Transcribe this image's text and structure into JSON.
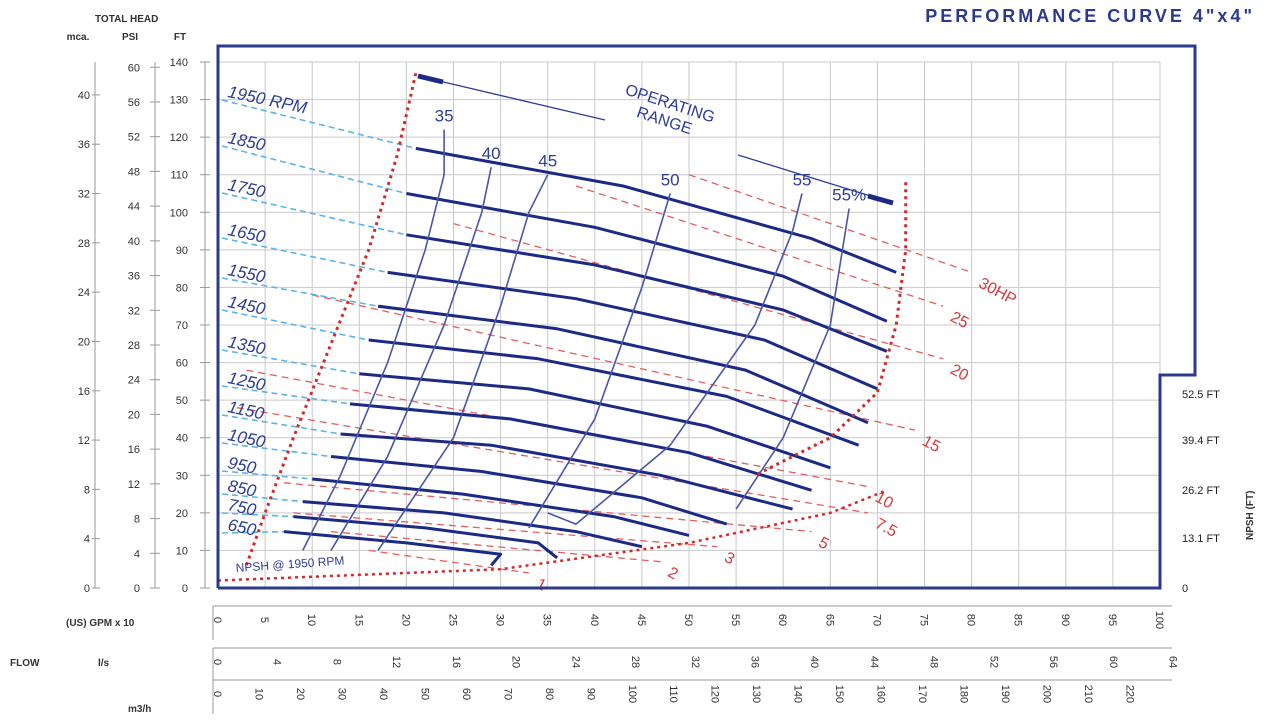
{
  "title": "PERFORMANCE CURVE  4\"x4\"",
  "header": {
    "total_head": "TOTAL HEAD",
    "mca": "mca.",
    "psi": "PSI",
    "ft": "FT"
  },
  "axis_labels": {
    "gpm": "(US) GPM  x 10",
    "flow": "FLOW",
    "ls": "l/s",
    "m3h": "m3/h",
    "npsh_ft": "NPSH (FT)"
  },
  "annotations": {
    "operating_range": [
      "OPERATING",
      "RANGE"
    ],
    "npsh_curve_label": "NPSH @ 1950 RPM"
  },
  "chart_data": {
    "type": "line",
    "xlabel": "(US) GPM x 10",
    "ylabel": "TOTAL HEAD",
    "xlim": [
      0,
      100
    ],
    "ylim": [
      0,
      140
    ],
    "grid": true,
    "x_ticks_gpm10": [
      "0",
      "5",
      "10",
      "15",
      "20",
      "25",
      "30",
      "35",
      "40",
      "45",
      "50",
      "55",
      "60",
      "65",
      "70",
      "75",
      "80",
      "85",
      "90",
      "95",
      "100"
    ],
    "x_ticks_ls": [
      "0",
      "4",
      "8",
      "12",
      "16",
      "20",
      "24",
      "28",
      "32",
      "36",
      "40",
      "44",
      "48",
      "52",
      "56",
      "60",
      "64"
    ],
    "x_ticks_m3h": [
      "0",
      "10",
      "20",
      "30",
      "40",
      "50",
      "60",
      "70",
      "80",
      "90",
      "100",
      "110",
      "120",
      "130",
      "140",
      "150",
      "160",
      "170",
      "180",
      "190",
      "200",
      "210",
      "220"
    ],
    "y_ticks_ft": [
      "0",
      "10",
      "20",
      "30",
      "40",
      "50",
      "60",
      "70",
      "80",
      "90",
      "100",
      "110",
      "120",
      "130",
      "140"
    ],
    "y_ticks_psi": [
      "0",
      "4",
      "8",
      "12",
      "16",
      "20",
      "24",
      "28",
      "32",
      "36",
      "40",
      "44",
      "48",
      "52",
      "56",
      "60"
    ],
    "y_ticks_mca": [
      "0",
      "4",
      "8",
      "12",
      "16",
      "20",
      "24",
      "28",
      "32",
      "36",
      "40"
    ],
    "npsh_ticks": [
      "0",
      "13.1 FT",
      "26.2 FT",
      "39.4 FT",
      "52.5 FT"
    ],
    "series": [
      {
        "name": "1950 RPM",
        "label": "1950 RPM",
        "x": [
          21,
          43,
          63,
          72
        ],
        "y": [
          117,
          107,
          93,
          84
        ]
      },
      {
        "name": "1850",
        "label": "1850",
        "x": [
          20,
          40,
          60,
          71
        ],
        "y": [
          105,
          96,
          83,
          71
        ]
      },
      {
        "name": "1750",
        "label": "1750",
        "x": [
          20,
          40,
          60,
          71
        ],
        "y": [
          94,
          86,
          74,
          63
        ]
      },
      {
        "name": "1650",
        "label": "1650",
        "x": [
          18,
          38,
          58,
          70
        ],
        "y": [
          84,
          77,
          66,
          53
        ]
      },
      {
        "name": "1550",
        "label": "1550",
        "x": [
          17,
          36,
          56,
          69
        ],
        "y": [
          75,
          69,
          58,
          44
        ]
      },
      {
        "name": "1450",
        "label": "1450",
        "x": [
          16,
          34,
          54,
          68
        ],
        "y": [
          66,
          61,
          51,
          38
        ]
      },
      {
        "name": "1350",
        "label": "1350",
        "x": [
          15,
          33,
          52,
          65
        ],
        "y": [
          57,
          53,
          43,
          32
        ]
      },
      {
        "name": "1250",
        "label": "1250",
        "x": [
          14,
          31,
          50,
          63
        ],
        "y": [
          49,
          45,
          36,
          26
        ]
      },
      {
        "name": "1150",
        "label": "1150",
        "x": [
          13,
          29,
          47,
          61
        ],
        "y": [
          41,
          38,
          30,
          21
        ]
      },
      {
        "name": "1050",
        "label": "1050",
        "x": [
          12,
          28,
          45,
          54
        ],
        "y": [
          35,
          31,
          24,
          17
        ]
      },
      {
        "name": "950",
        "label": "950",
        "x": [
          10,
          26,
          42,
          50
        ],
        "y": [
          29,
          25,
          19,
          14
        ]
      },
      {
        "name": "850",
        "label": "850",
        "x": [
          9,
          24,
          38,
          45
        ],
        "y": [
          23,
          20,
          15,
          11
        ]
      },
      {
        "name": "750",
        "label": "750",
        "x": [
          8,
          22,
          34,
          36
        ],
        "y": [
          19,
          16,
          12,
          8
        ]
      },
      {
        "name": "650",
        "label": "650",
        "x": [
          7,
          20,
          30,
          29
        ],
        "y": [
          15,
          12,
          9,
          6
        ]
      }
    ],
    "efficiency_curves": [
      {
        "label": "35",
        "x": [
          9,
          13,
          18,
          22,
          24,
          24
        ],
        "y": [
          10,
          30,
          60,
          90,
          110,
          122
        ]
      },
      {
        "label": "40",
        "x": [
          12,
          18,
          24,
          28,
          29
        ],
        "y": [
          10,
          35,
          70,
          100,
          112
        ]
      },
      {
        "label": "45",
        "x": [
          17,
          25,
          30,
          33,
          35
        ],
        "y": [
          10,
          40,
          75,
          100,
          110
        ]
      },
      {
        "label": "50",
        "x": [
          33,
          40,
          45,
          48
        ],
        "y": [
          16,
          45,
          80,
          105
        ]
      },
      {
        "label": "55",
        "x": [
          35,
          38,
          48,
          57,
          61,
          62
        ],
        "y": [
          20,
          17,
          38,
          70,
          95,
          105
        ]
      },
      {
        "label": "55%",
        "x": [
          55,
          60,
          65,
          67
        ],
        "y": [
          21,
          40,
          70,
          101
        ]
      }
    ],
    "horsepower_lines": [
      {
        "label": "30HP",
        "x": [
          50,
          80
        ],
        "y": [
          110,
          84
        ]
      },
      {
        "label": "25",
        "x": [
          38,
          77
        ],
        "y": [
          107,
          75
        ]
      },
      {
        "label": "20",
        "x": [
          25,
          77
        ],
        "y": [
          97,
          61
        ]
      },
      {
        "label": "15",
        "x": [
          10,
          74
        ],
        "y": [
          78,
          42
        ]
      },
      {
        "label": "10",
        "x": [
          3,
          69
        ],
        "y": [
          58,
          27
        ]
      },
      {
        "label": "7.5",
        "x": [
          2,
          69
        ],
        "y": [
          48,
          20
        ]
      },
      {
        "label": "5",
        "x": [
          7,
          63
        ],
        "y": [
          28,
          15
        ]
      },
      {
        "label": "3",
        "x": [
          8,
          53
        ],
        "y": [
          20,
          11
        ]
      },
      {
        "label": "2",
        "x": [
          12,
          47
        ],
        "y": [
          15,
          7
        ]
      },
      {
        "label": "1",
        "x": [
          16,
          33
        ],
        "y": [
          10,
          4
        ]
      }
    ],
    "npsh_curve": {
      "label": "NPSH @ 1950 RPM",
      "x": [
        0,
        30,
        50,
        65,
        71
      ],
      "y": [
        2,
        5,
        12,
        20,
        26
      ]
    },
    "operating_range_left": {
      "x": [
        21,
        19,
        16,
        12,
        8,
        5,
        3
      ],
      "y": [
        137,
        115,
        90,
        65,
        40,
        20,
        6
      ]
    },
    "operating_range_right": {
      "x": [
        73,
        73,
        72,
        70,
        65,
        57
      ],
      "y": [
        108,
        90,
        70,
        52,
        40,
        30
      ]
    }
  }
}
